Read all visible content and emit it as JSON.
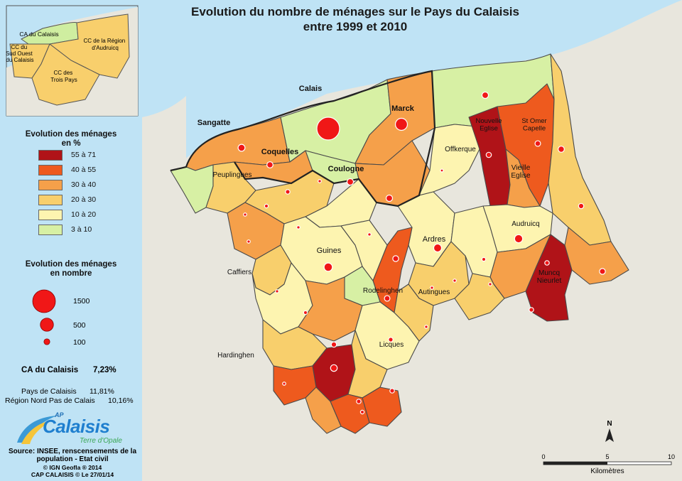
{
  "map": {
    "title_line1": "Evolution du nombre de ménages sur le Pays du Calaisis",
    "title_line2": "entre 1999 et 2010",
    "colors": {
      "sea": "#bfe3f5",
      "land_outside": "#e8e6dd",
      "class_55_71": "#b01318",
      "class_40_55": "#ee5a1e",
      "class_30_40": "#f5a04a",
      "class_20_30": "#f8cf6c",
      "class_10_20": "#fdf4b0",
      "class_3_10": "#d7f0a4",
      "circle": "#f01717",
      "border": "#4a4a4a"
    },
    "communes": [
      {
        "name": "Calais",
        "class": "class_3_10"
      },
      {
        "name": "Marck",
        "class": "class_30_40"
      },
      {
        "name": "Sangatte",
        "class": "class_30_40"
      },
      {
        "name": "Coquelles",
        "class": "class_30_40"
      },
      {
        "name": "Coulogne",
        "class": "class_3_10"
      },
      {
        "name": "Peuplingues",
        "class": "class_20_30"
      },
      {
        "name": "Nouvelle Eglise",
        "class": "class_55_71"
      },
      {
        "name": "St Omer Capelle",
        "class": "class_40_55"
      },
      {
        "name": "Offkerque",
        "class": "class_10_20"
      },
      {
        "name": "Vieille Eglise",
        "class": "class_30_40"
      },
      {
        "name": "Audruicq",
        "class": "class_10_20"
      },
      {
        "name": "Ardres",
        "class": "class_10_20"
      },
      {
        "name": "Guines",
        "class": "class_10_20"
      },
      {
        "name": "Caffiers",
        "class": "class_20_30"
      },
      {
        "name": "Rodelinghen",
        "class": "class_40_55"
      },
      {
        "name": "Autingues",
        "class": "class_20_30"
      },
      {
        "name": "Licques",
        "class": "class_10_20"
      },
      {
        "name": "Hardinghen",
        "class": "class_20_30"
      },
      {
        "name": "Muncq Nieurlet",
        "class": "class_55_71"
      }
    ],
    "place_labels": {
      "calais": "Calais",
      "marck": "Marck",
      "sangatte": "Sangatte",
      "coquelles": "Coquelles",
      "coulogne": "Coulogne",
      "peuplingues": "Peuplingues",
      "nouvelle_eglise": [
        "Nouvelle",
        "Eglise"
      ],
      "st_omer_capelle": [
        "St Omer",
        "Capelle"
      ],
      "offkerque": "Offkerque",
      "vieille_eglise": [
        "Vieille",
        "Eglise"
      ],
      "audruicq": "Audruicq",
      "ardres": "Ardres",
      "guines": "Guines",
      "caffiers": "Caffiers",
      "rodelinghen": "Rodelinghen",
      "autingues": "Autingues",
      "licques": "Licques",
      "hardinghen": "Hardinghen",
      "muncq_nieurlet": [
        "Muncq",
        "Nieurlet"
      ]
    }
  },
  "inset": {
    "labels": {
      "ca_calaisis": "CA du Calaisis",
      "cc_sud_ouest": [
        "CC du",
        "Sud Ouest",
        "du Calaisis"
      ],
      "cc_audruicq": [
        "CC de la Région",
        "d'Audruicq"
      ],
      "cc_trois_pays": [
        "CC des",
        "Trois Pays"
      ]
    }
  },
  "legend": {
    "pct_title_line1": "Evolution des ménages",
    "pct_title_line2": "en %",
    "pct_classes": [
      {
        "label": "55 à 71",
        "color": "#b01318"
      },
      {
        "label": "40 à 55",
        "color": "#ee5a1e"
      },
      {
        "label": "30 à 40",
        "color": "#f5a04a"
      },
      {
        "label": "20 à 30",
        "color": "#f8cf6c"
      },
      {
        "label": "10 à 20",
        "color": "#fdf4b0"
      },
      {
        "label": "3 à 10",
        "color": "#d7f0a4"
      }
    ],
    "nb_title_line1": "Evolution des  ménages",
    "nb_title_line2": "en nombre",
    "nb_classes": [
      {
        "label": "1500",
        "value": 1500
      },
      {
        "label": "500",
        "value": 500
      },
      {
        "label": "100",
        "value": 100
      }
    ]
  },
  "stats": {
    "ca_label": "CA du Calaisis",
    "ca_value": "7,23%",
    "pays_label": "Pays de Calaisis",
    "pays_value": "11,81%",
    "region_label": "Région Nord Pas de Calais",
    "region_value": "10,16%"
  },
  "logo": {
    "ap": "AP",
    "name": "Calaisis",
    "tagline": "Terre d'Opale"
  },
  "source": {
    "line1": "Source: INSEE, renscensements de la",
    "line2": "population - Etat civil",
    "line3": "© IGN Geofla ® 2014",
    "line4": "CAP CALAISIS © Le 27/01/14"
  },
  "north": {
    "label": "N"
  },
  "scale": {
    "ticks": [
      "0",
      "5",
      "10"
    ],
    "unit": "Kilomètres"
  }
}
